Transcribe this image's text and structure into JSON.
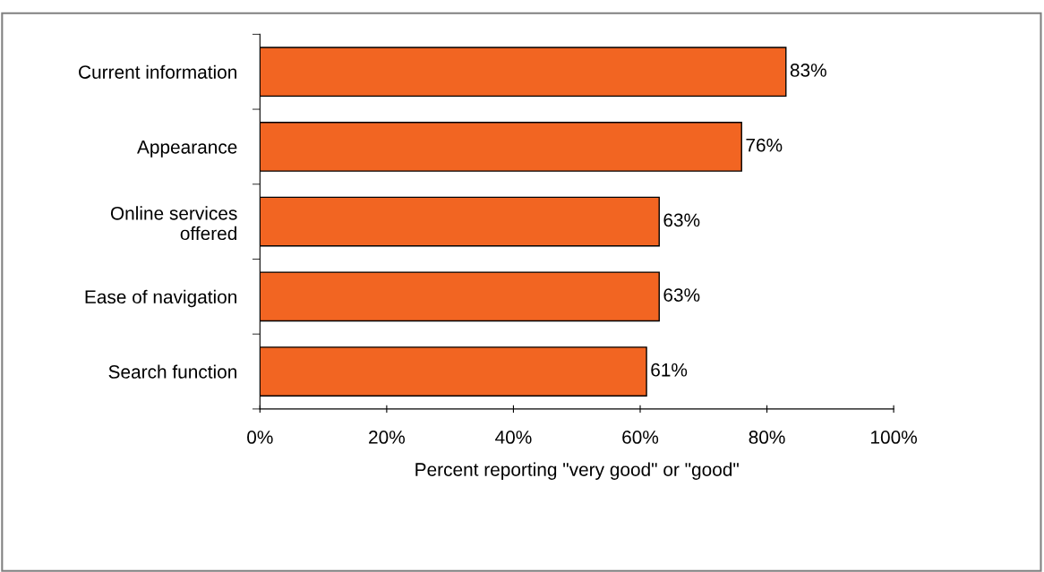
{
  "chart_data": {
    "type": "bar",
    "orientation": "horizontal",
    "categories": [
      "Current information",
      "Appearance",
      "Online services\noffered",
      "Ease of navigation",
      "Search function"
    ],
    "values": [
      83,
      76,
      63,
      63,
      61
    ],
    "color": "#f26522",
    "value_labels": [
      "83%",
      "76%",
      "63%",
      "63%",
      "61%"
    ],
    "xlabel": "Percent reporting \"very good\" or \"good\"",
    "xlim": [
      0,
      100
    ],
    "xticks": [
      {
        "value": 0,
        "label": "0%"
      },
      {
        "value": 20,
        "label": "20%"
      },
      {
        "value": 40,
        "label": "40%"
      },
      {
        "value": 60,
        "label": "60%"
      },
      {
        "value": 80,
        "label": "80%"
      },
      {
        "value": 100,
        "label": "100%"
      }
    ],
    "grid": false,
    "legend": false
  }
}
